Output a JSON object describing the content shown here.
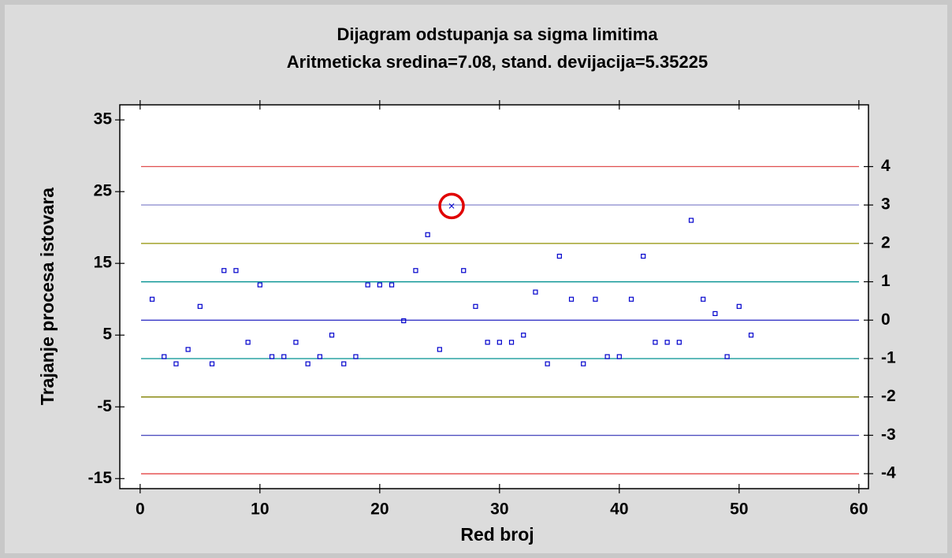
{
  "chart_data": {
    "type": "scatter",
    "title": "Dijagram odstupanja sa sigma limitima",
    "subtitle": "Aritmeticka sredina=7.08, stand. devijacija=5.35225",
    "x_label": "Red broj",
    "y_label": "Trajanje procesa istovara",
    "x": [
      1,
      2,
      3,
      4,
      5,
      6,
      7,
      8,
      9,
      10,
      11,
      12,
      13,
      14,
      15,
      16,
      17,
      18,
      19,
      20,
      21,
      22,
      23,
      24,
      25,
      26,
      27,
      28,
      29,
      30,
      31,
      32,
      33,
      34,
      35,
      36,
      37,
      38,
      39,
      40,
      41,
      42,
      43,
      44,
      45,
      46,
      47,
      48,
      49,
      50,
      51
    ],
    "values": [
      10,
      2,
      1,
      3,
      9,
      1,
      14,
      14,
      4,
      12,
      2,
      2,
      4,
      1,
      2,
      5,
      1,
      2,
      12,
      12,
      12,
      7,
      14,
      19,
      3,
      23,
      14,
      9,
      4,
      4,
      4,
      5,
      11,
      1,
      16,
      10,
      1,
      10,
      2,
      2,
      10,
      16,
      4,
      4,
      4,
      21,
      10,
      8,
      2,
      9,
      5
    ],
    "color": "#0000cc",
    "outliers": [
      25
    ],
    "outlier_color": "#e00000",
    "xlim": [
      -1.7,
      60.8
    ],
    "xticks": [
      0,
      10,
      20,
      30,
      40,
      50,
      60
    ],
    "ylim": [
      -16.4,
      37.1
    ],
    "yticks": [
      -15,
      -5,
      5,
      15,
      25,
      35
    ],
    "y2lim": [
      -4.39,
      5.61
    ],
    "y2ticks": [
      -4,
      -3,
      -2,
      -1,
      0,
      1,
      2,
      3,
      4
    ],
    "lines": [
      {
        "value": 28.49,
        "color": "#e05050"
      },
      {
        "value": 23.14,
        "color": "#9090d0"
      },
      {
        "value": 17.78,
        "color": "#909000"
      },
      {
        "value": 12.43,
        "color": "#009090"
      },
      {
        "value": 7.08,
        "color": "#2020c0"
      },
      {
        "value": 1.73,
        "color": "#009090"
      },
      {
        "value": -3.62,
        "color": "#808000"
      },
      {
        "value": -8.98,
        "color": "#5050c0"
      },
      {
        "value": -14.33,
        "color": "#e03030"
      }
    ]
  }
}
